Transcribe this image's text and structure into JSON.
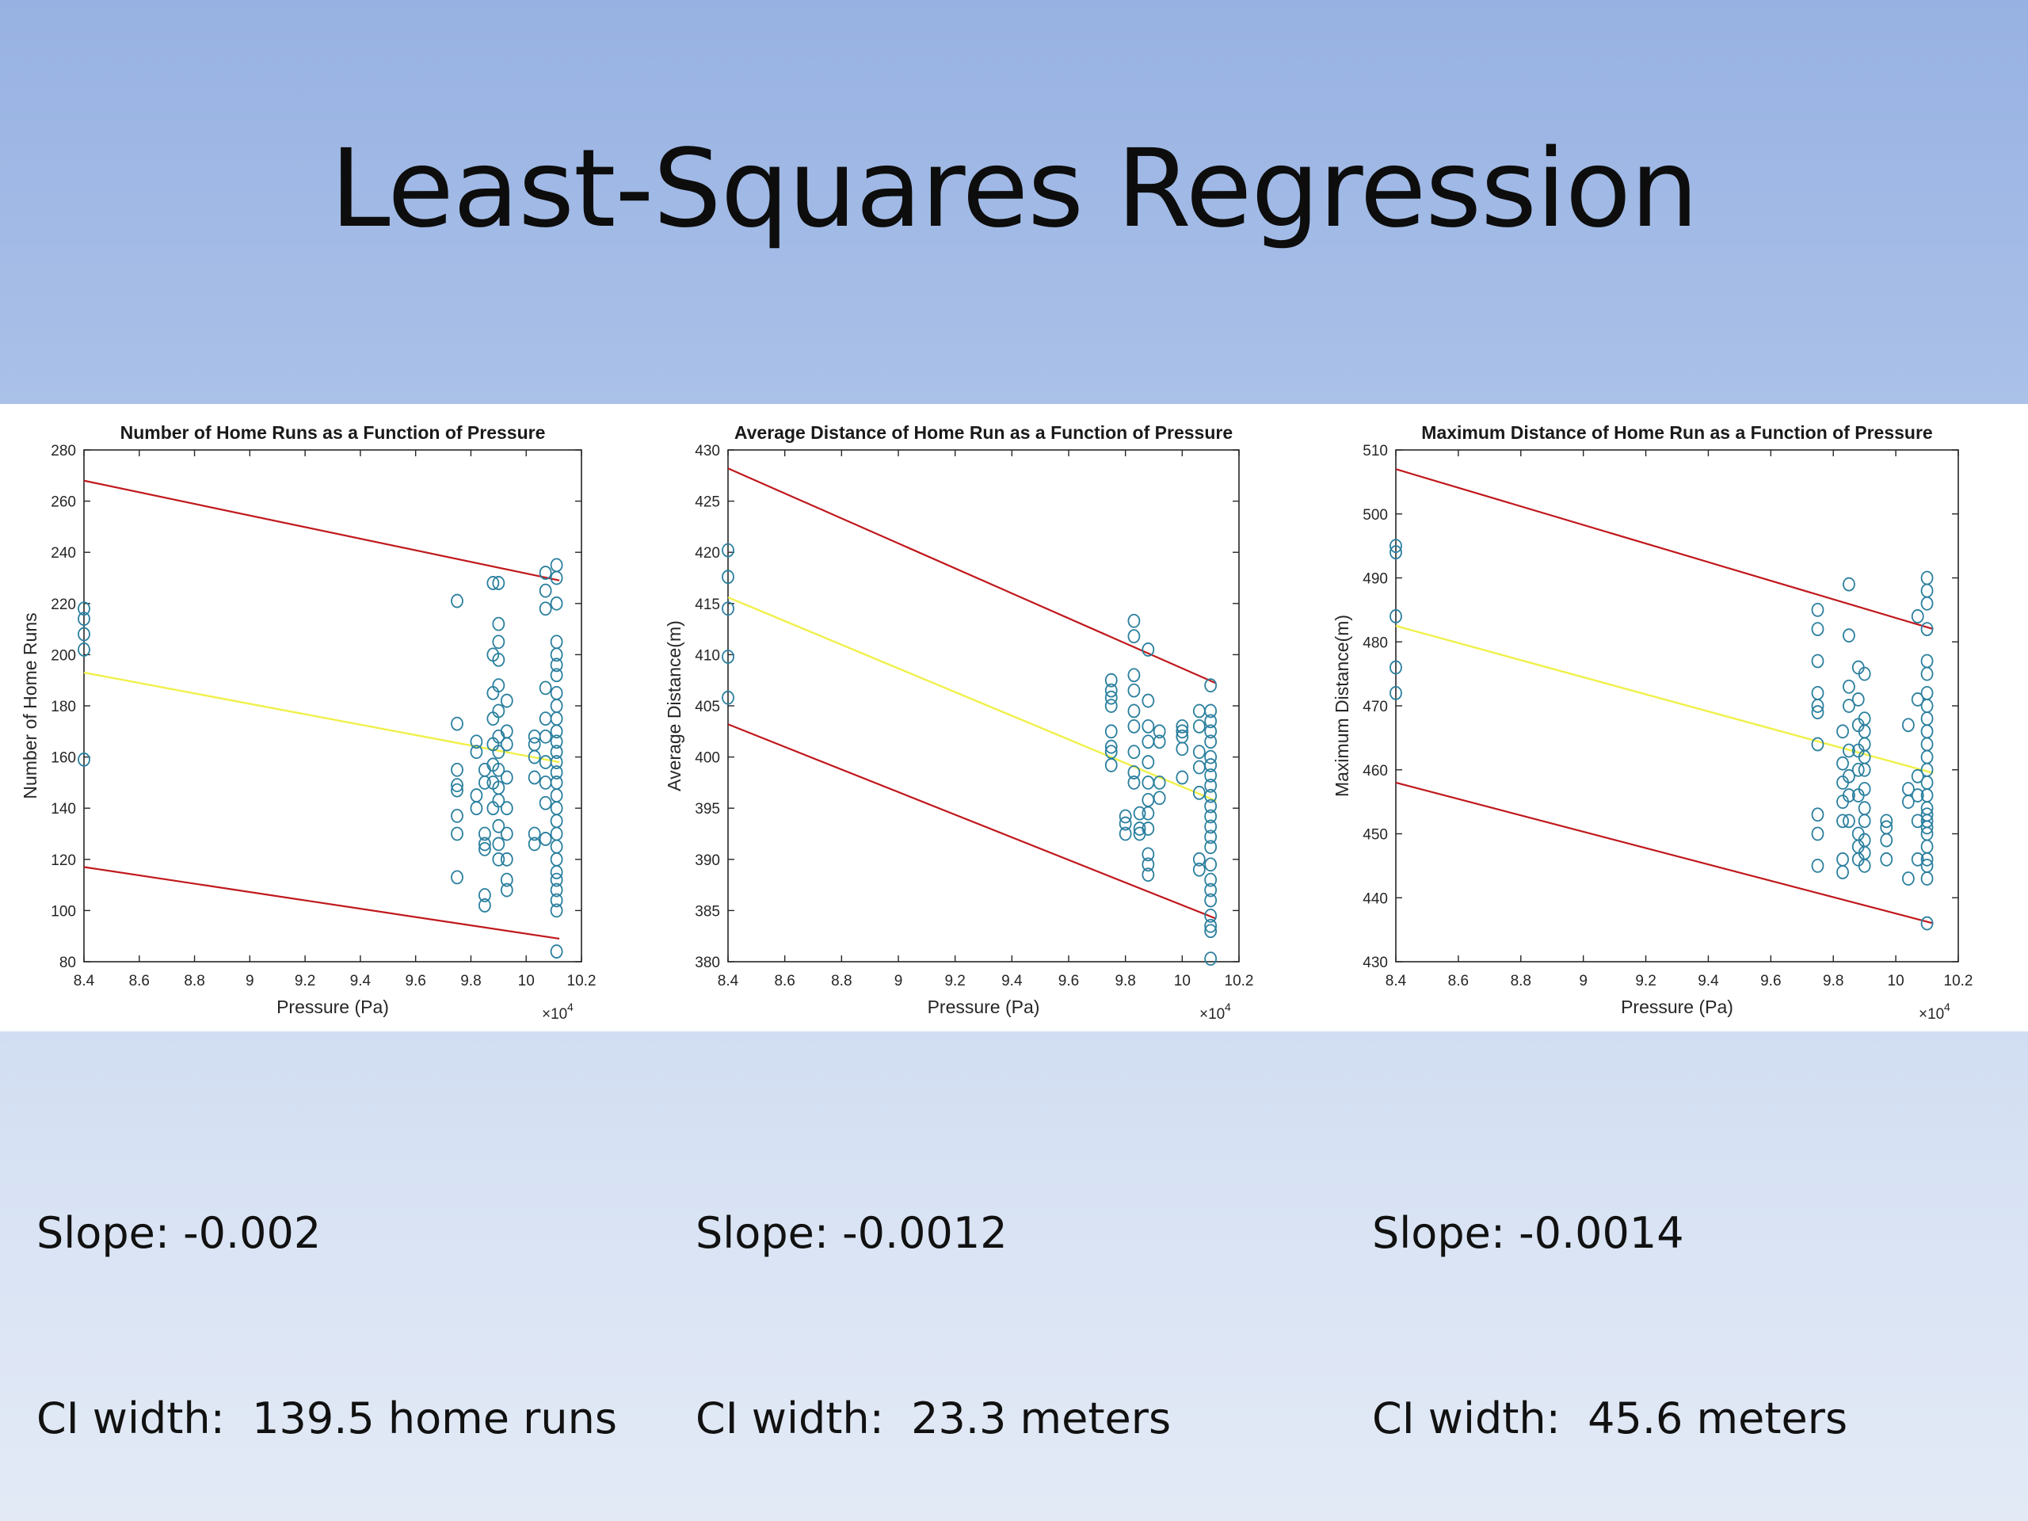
{
  "slide": {
    "title": "Least-Squares Regression"
  },
  "colors": {
    "points": "#2a7f9e",
    "fit": "#f0f04a",
    "ci": "#c0181c",
    "axis": "#262626"
  },
  "captions": [
    {
      "slope": "Slope: -0.002",
      "ci": "CI width:  139.5 home runs"
    },
    {
      "slope": "Slope: -0.0012",
      "ci": "CI width:  23.3 meters"
    },
    {
      "slope": "Slope: -0.0014",
      "ci": "CI width:  45.6 meters"
    }
  ],
  "chart_data": [
    {
      "type": "scatter",
      "title": "Number of Home Runs as a Function of Pressure",
      "xlabel": "Pressure (Pa)",
      "ylabel": "Number of Home Runs",
      "x_multiplier": "×10",
      "x_multiplier_exp": "4",
      "xlim": [
        8.4,
        10.2
      ],
      "ylim": [
        80,
        280
      ],
      "xticks": [
        8.4,
        8.6,
        8.8,
        9,
        9.2,
        9.4,
        9.6,
        9.8,
        10,
        10.2
      ],
      "xtick_labels": [
        "8.4",
        "8.6",
        "8.8",
        "9",
        "9.2",
        "9.4",
        "9.6",
        "9.8",
        "10",
        "10.2"
      ],
      "yticks": [
        80,
        100,
        120,
        140,
        160,
        180,
        200,
        220,
        240,
        260,
        280
      ],
      "ytick_labels": [
        "80",
        "100",
        "120",
        "140",
        "160",
        "180",
        "200",
        "220",
        "240",
        "260",
        "280"
      ],
      "lines": [
        {
          "role": "upper-ci",
          "x": [
            8.4,
            10.12
          ],
          "y": [
            268,
            229
          ]
        },
        {
          "role": "fit",
          "x": [
            8.4,
            10.12
          ],
          "y": [
            193,
            158
          ]
        },
        {
          "role": "lower-ci",
          "x": [
            8.4,
            10.12
          ],
          "y": [
            117,
            89
          ]
        }
      ],
      "points": [
        [
          8.4,
          218
        ],
        [
          8.4,
          214
        ],
        [
          8.4,
          208
        ],
        [
          8.4,
          202
        ],
        [
          8.4,
          159
        ],
        [
          9.75,
          221
        ],
        [
          9.75,
          173
        ],
        [
          9.75,
          155
        ],
        [
          9.75,
          149
        ],
        [
          9.75,
          147
        ],
        [
          9.75,
          137
        ],
        [
          9.75,
          130
        ],
        [
          9.75,
          113
        ],
        [
          9.82,
          166
        ],
        [
          9.82,
          162
        ],
        [
          9.82,
          145
        ],
        [
          9.82,
          140
        ],
        [
          9.85,
          155
        ],
        [
          9.85,
          150
        ],
        [
          9.85,
          130
        ],
        [
          9.85,
          126
        ],
        [
          9.85,
          124
        ],
        [
          9.85,
          106
        ],
        [
          9.85,
          102
        ],
        [
          9.88,
          228
        ],
        [
          9.88,
          200
        ],
        [
          9.88,
          185
        ],
        [
          9.88,
          175
        ],
        [
          9.88,
          165
        ],
        [
          9.88,
          157
        ],
        [
          9.88,
          150
        ],
        [
          9.88,
          140
        ],
        [
          9.9,
          228
        ],
        [
          9.9,
          212
        ],
        [
          9.9,
          205
        ],
        [
          9.9,
          198
        ],
        [
          9.9,
          188
        ],
        [
          9.9,
          178
        ],
        [
          9.9,
          168
        ],
        [
          9.9,
          162
        ],
        [
          9.9,
          155
        ],
        [
          9.9,
          148
        ],
        [
          9.9,
          143
        ],
        [
          9.9,
          133
        ],
        [
          9.9,
          126
        ],
        [
          9.9,
          120
        ],
        [
          9.93,
          182
        ],
        [
          9.93,
          170
        ],
        [
          9.93,
          165
        ],
        [
          9.93,
          152
        ],
        [
          9.93,
          140
        ],
        [
          9.93,
          130
        ],
        [
          9.93,
          120
        ],
        [
          9.93,
          112
        ],
        [
          9.93,
          108
        ],
        [
          10.03,
          168
        ],
        [
          10.03,
          165
        ],
        [
          10.03,
          160
        ],
        [
          10.03,
          152
        ],
        [
          10.03,
          130
        ],
        [
          10.03,
          126
        ],
        [
          10.07,
          232
        ],
        [
          10.07,
          225
        ],
        [
          10.07,
          218
        ],
        [
          10.07,
          187
        ],
        [
          10.07,
          175
        ],
        [
          10.07,
          168
        ],
        [
          10.07,
          158
        ],
        [
          10.07,
          150
        ],
        [
          10.07,
          142
        ],
        [
          10.07,
          128
        ],
        [
          10.11,
          235
        ],
        [
          10.11,
          230
        ],
        [
          10.11,
          220
        ],
        [
          10.11,
          205
        ],
        [
          10.11,
          200
        ],
        [
          10.11,
          196
        ],
        [
          10.11,
          192
        ],
        [
          10.11,
          185
        ],
        [
          10.11,
          180
        ],
        [
          10.11,
          175
        ],
        [
          10.11,
          170
        ],
        [
          10.11,
          166
        ],
        [
          10.11,
          162
        ],
        [
          10.11,
          158
        ],
        [
          10.11,
          154
        ],
        [
          10.11,
          150
        ],
        [
          10.11,
          145
        ],
        [
          10.11,
          140
        ],
        [
          10.11,
          135
        ],
        [
          10.11,
          130
        ],
        [
          10.11,
          125
        ],
        [
          10.11,
          120
        ],
        [
          10.11,
          115
        ],
        [
          10.11,
          112
        ],
        [
          10.11,
          108
        ],
        [
          10.11,
          104
        ],
        [
          10.11,
          100
        ],
        [
          10.11,
          84
        ]
      ]
    },
    {
      "type": "scatter",
      "title": "Average Distance of Home Run as a Function of Pressure",
      "xlabel": "Pressure (Pa)",
      "ylabel": "Average Distance(m)",
      "x_multiplier": "×10",
      "x_multiplier_exp": "4",
      "xlim": [
        8.4,
        10.2
      ],
      "ylim": [
        380,
        430
      ],
      "xticks": [
        8.4,
        8.6,
        8.8,
        9,
        9.2,
        9.4,
        9.6,
        9.8,
        10,
        10.2
      ],
      "xtick_labels": [
        "8.4",
        "8.6",
        "8.8",
        "9",
        "9.2",
        "9.4",
        "9.6",
        "9.8",
        "10",
        "10.2"
      ],
      "yticks": [
        380,
        385,
        390,
        395,
        400,
        405,
        410,
        415,
        420,
        425,
        430
      ],
      "ytick_labels": [
        "380",
        "385",
        "390",
        "395",
        "400",
        "405",
        "410",
        "415",
        "420",
        "425",
        "430"
      ],
      "lines": [
        {
          "role": "upper-ci",
          "x": [
            8.4,
            10.12
          ],
          "y": [
            428.2,
            407.2
          ]
        },
        {
          "role": "fit",
          "x": [
            8.4,
            10.12
          ],
          "y": [
            415.6,
            395.7
          ]
        },
        {
          "role": "lower-ci",
          "x": [
            8.4,
            10.12
          ],
          "y": [
            403.2,
            384.2
          ]
        }
      ],
      "points": [
        [
          8.4,
          420.2
        ],
        [
          8.4,
          417.6
        ],
        [
          8.4,
          414.5
        ],
        [
          8.4,
          409.8
        ],
        [
          8.4,
          405.8
        ],
        [
          9.75,
          407.5
        ],
        [
          9.75,
          406.5
        ],
        [
          9.75,
          405.8
        ],
        [
          9.75,
          405
        ],
        [
          9.75,
          402.5
        ],
        [
          9.75,
          401
        ],
        [
          9.75,
          400.5
        ],
        [
          9.75,
          399.2
        ],
        [
          9.8,
          394.2
        ],
        [
          9.8,
          393.5
        ],
        [
          9.8,
          392.5
        ],
        [
          9.83,
          413.3
        ],
        [
          9.83,
          411.8
        ],
        [
          9.83,
          408
        ],
        [
          9.83,
          406.5
        ],
        [
          9.83,
          404.5
        ],
        [
          9.83,
          403
        ],
        [
          9.83,
          400.5
        ],
        [
          9.83,
          398.5
        ],
        [
          9.83,
          397.5
        ],
        [
          9.85,
          394.5
        ],
        [
          9.85,
          393
        ],
        [
          9.85,
          392.5
        ],
        [
          9.88,
          410.5
        ],
        [
          9.88,
          405.5
        ],
        [
          9.88,
          403
        ],
        [
          9.88,
          401.5
        ],
        [
          9.88,
          399.5
        ],
        [
          9.88,
          397.5
        ],
        [
          9.88,
          395.8
        ],
        [
          9.88,
          394.5
        ],
        [
          9.88,
          393
        ],
        [
          9.88,
          390.5
        ],
        [
          9.88,
          389.5
        ],
        [
          9.88,
          388.5
        ],
        [
          9.92,
          402.5
        ],
        [
          9.92,
          401.5
        ],
        [
          9.92,
          397.5
        ],
        [
          9.92,
          396
        ],
        [
          10.0,
          403
        ],
        [
          10.0,
          402.5
        ],
        [
          10.0,
          402
        ],
        [
          10.0,
          400.8
        ],
        [
          10.0,
          398
        ],
        [
          10.06,
          404.5
        ],
        [
          10.06,
          403
        ],
        [
          10.06,
          400.5
        ],
        [
          10.06,
          399
        ],
        [
          10.06,
          396.5
        ],
        [
          10.06,
          390
        ],
        [
          10.06,
          389
        ],
        [
          10.1,
          407
        ],
        [
          10.1,
          404.5
        ],
        [
          10.1,
          403.5
        ],
        [
          10.1,
          402.5
        ],
        [
          10.1,
          401.5
        ],
        [
          10.1,
          400
        ],
        [
          10.1,
          399.2
        ],
        [
          10.1,
          398.2
        ],
        [
          10.1,
          397.2
        ],
        [
          10.1,
          396.2
        ],
        [
          10.1,
          395.2
        ],
        [
          10.1,
          394.2
        ],
        [
          10.1,
          393.2
        ],
        [
          10.1,
          392.2
        ],
        [
          10.1,
          391.2
        ],
        [
          10.1,
          389.5
        ],
        [
          10.1,
          388
        ],
        [
          10.1,
          387
        ],
        [
          10.1,
          386
        ],
        [
          10.1,
          384.5
        ],
        [
          10.1,
          383.5
        ],
        [
          10.1,
          383
        ],
        [
          10.1,
          380.3
        ]
      ]
    },
    {
      "type": "scatter",
      "title": "Maximum Distance of Home Run as a Function of Pressure",
      "xlabel": "Pressure (Pa)",
      "ylabel": "Maximum Distance(m)",
      "x_multiplier": "×10",
      "x_multiplier_exp": "4",
      "xlim": [
        8.4,
        10.2
      ],
      "ylim": [
        430,
        510
      ],
      "xticks": [
        8.4,
        8.6,
        8.8,
        9,
        9.2,
        9.4,
        9.6,
        9.8,
        10,
        10.2
      ],
      "xtick_labels": [
        "8.4",
        "8.6",
        "8.8",
        "9",
        "9.2",
        "9.4",
        "9.6",
        "9.8",
        "10",
        "10.2"
      ],
      "yticks": [
        430,
        440,
        450,
        460,
        470,
        480,
        490,
        500,
        510
      ],
      "ytick_labels": [
        "430",
        "440",
        "450",
        "460",
        "470",
        "480",
        "490",
        "500",
        "510"
      ],
      "lines": [
        {
          "role": "upper-ci",
          "x": [
            8.4,
            10.12
          ],
          "y": [
            507,
            482
          ]
        },
        {
          "role": "fit",
          "x": [
            8.4,
            10.12
          ],
          "y": [
            482.5,
            459.5
          ]
        },
        {
          "role": "lower-ci",
          "x": [
            8.4,
            10.12
          ],
          "y": [
            458,
            436
          ]
        }
      ],
      "points": [
        [
          8.4,
          495
        ],
        [
          8.4,
          494
        ],
        [
          8.4,
          484
        ],
        [
          8.4,
          476
        ],
        [
          8.4,
          472
        ],
        [
          9.75,
          485
        ],
        [
          9.75,
          482
        ],
        [
          9.75,
          477
        ],
        [
          9.75,
          472
        ],
        [
          9.75,
          470
        ],
        [
          9.75,
          469
        ],
        [
          9.75,
          464
        ],
        [
          9.75,
          453
        ],
        [
          9.75,
          450
        ],
        [
          9.75,
          445
        ],
        [
          9.83,
          466
        ],
        [
          9.83,
          461
        ],
        [
          9.83,
          458
        ],
        [
          9.83,
          455
        ],
        [
          9.83,
          452
        ],
        [
          9.83,
          446
        ],
        [
          9.83,
          444
        ],
        [
          9.85,
          489
        ],
        [
          9.85,
          481
        ],
        [
          9.85,
          473
        ],
        [
          9.85,
          470
        ],
        [
          9.85,
          463
        ],
        [
          9.85,
          459
        ],
        [
          9.85,
          456
        ],
        [
          9.85,
          452
        ],
        [
          9.88,
          476
        ],
        [
          9.88,
          471
        ],
        [
          9.88,
          467
        ],
        [
          9.88,
          463
        ],
        [
          9.88,
          460
        ],
        [
          9.88,
          456
        ],
        [
          9.88,
          450
        ],
        [
          9.88,
          448
        ],
        [
          9.88,
          446
        ],
        [
          9.9,
          475
        ],
        [
          9.9,
          468
        ],
        [
          9.9,
          466
        ],
        [
          9.9,
          464
        ],
        [
          9.9,
          462
        ],
        [
          9.9,
          460
        ],
        [
          9.9,
          457
        ],
        [
          9.9,
          454
        ],
        [
          9.9,
          452
        ],
        [
          9.9,
          449
        ],
        [
          9.9,
          447
        ],
        [
          9.9,
          445
        ],
        [
          9.97,
          452
        ],
        [
          9.97,
          451
        ],
        [
          9.97,
          449
        ],
        [
          9.97,
          446
        ],
        [
          10.04,
          467
        ],
        [
          10.04,
          457
        ],
        [
          10.04,
          455
        ],
        [
          10.04,
          443
        ],
        [
          10.07,
          484
        ],
        [
          10.07,
          471
        ],
        [
          10.07,
          459
        ],
        [
          10.07,
          456
        ],
        [
          10.07,
          452
        ],
        [
          10.07,
          446
        ],
        [
          10.1,
          490
        ],
        [
          10.1,
          488
        ],
        [
          10.1,
          486
        ],
        [
          10.1,
          482
        ],
        [
          10.1,
          477
        ],
        [
          10.1,
          475
        ],
        [
          10.1,
          472
        ],
        [
          10.1,
          470
        ],
        [
          10.1,
          468
        ],
        [
          10.1,
          466
        ],
        [
          10.1,
          464
        ],
        [
          10.1,
          462
        ],
        [
          10.1,
          460
        ],
        [
          10.1,
          458
        ],
        [
          10.1,
          456
        ],
        [
          10.1,
          454
        ],
        [
          10.1,
          453
        ],
        [
          10.1,
          452
        ],
        [
          10.1,
          451
        ],
        [
          10.1,
          450
        ],
        [
          10.1,
          448
        ],
        [
          10.1,
          446
        ],
        [
          10.1,
          445
        ],
        [
          10.1,
          443
        ],
        [
          10.1,
          436
        ]
      ]
    }
  ]
}
